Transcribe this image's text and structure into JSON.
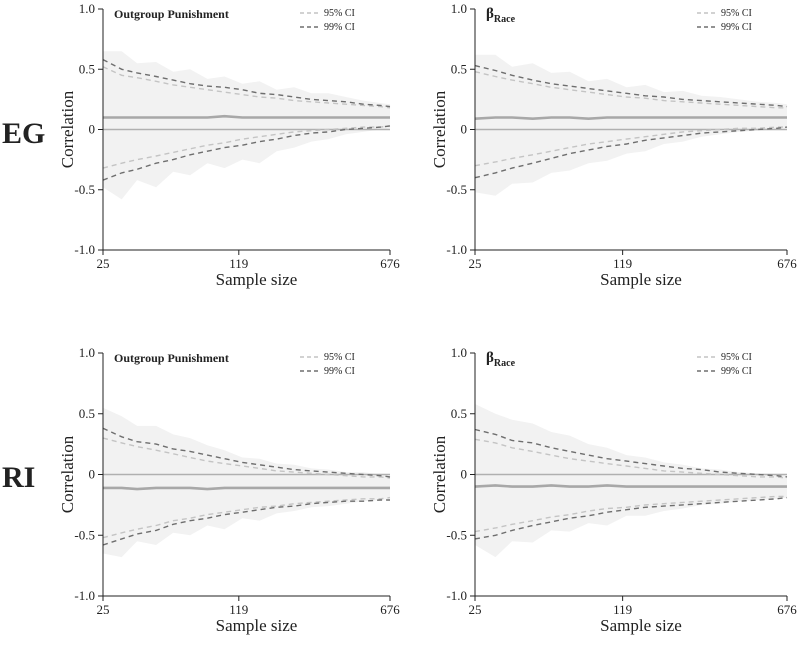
{
  "row_labels": [
    "EG",
    "RI"
  ],
  "legend": {
    "ci95": "95% CI",
    "ci99": "99% CI"
  },
  "chart_data": [
    {
      "type": "line",
      "row": "EG",
      "title": "Outgroup Punishment",
      "xlabel": "Sample size",
      "ylabel": "Correlation",
      "xscale": "log",
      "xlim": [
        25,
        676
      ],
      "ylim": [
        -1.0,
        1.0
      ],
      "xticks": [
        25,
        119,
        676
      ],
      "xtick_labels": [
        "25",
        "119",
        "676"
      ],
      "yticks": [
        1.0,
        0.5,
        0,
        -0.5,
        -1.0
      ],
      "ytick_labels": [
        "1.0",
        "0.5",
        "0",
        "-0.5",
        "-1.0"
      ],
      "reference_line": 0,
      "legend_position": "top-right",
      "x": [
        25,
        31,
        37,
        46,
        56,
        68,
        83,
        101,
        124,
        151,
        184,
        225,
        274,
        334,
        407,
        497,
        606,
        676
      ],
      "series": [
        {
          "role": "estimate",
          "values": [
            0.1,
            0.1,
            0.1,
            0.1,
            0.1,
            0.1,
            0.1,
            0.11,
            0.1,
            0.1,
            0.1,
            0.1,
            0.1,
            0.1,
            0.1,
            0.1,
            0.1,
            0.1
          ]
        },
        {
          "role": "band_upper",
          "values": [
            0.65,
            0.65,
            0.55,
            0.56,
            0.48,
            0.5,
            0.42,
            0.44,
            0.38,
            0.4,
            0.33,
            0.35,
            0.3,
            0.3,
            0.27,
            0.24,
            0.22,
            0.21
          ]
        },
        {
          "role": "band_lower",
          "values": [
            -0.48,
            -0.58,
            -0.42,
            -0.48,
            -0.35,
            -0.38,
            -0.28,
            -0.32,
            -0.25,
            -0.28,
            -0.18,
            -0.15,
            -0.1,
            -0.08,
            -0.04,
            -0.02,
            0.0,
            0.01
          ]
        },
        {
          "name": "95% CI",
          "role": "ci95_upper",
          "values": [
            0.52,
            0.45,
            0.43,
            0.4,
            0.37,
            0.35,
            0.33,
            0.31,
            0.29,
            0.27,
            0.26,
            0.24,
            0.23,
            0.22,
            0.21,
            0.2,
            0.19,
            0.18
          ]
        },
        {
          "name": "95% CI",
          "role": "ci95_lower",
          "values": [
            -0.32,
            -0.28,
            -0.25,
            -0.22,
            -0.19,
            -0.16,
            -0.13,
            -0.11,
            -0.08,
            -0.06,
            -0.04,
            -0.02,
            -0.01,
            0.0,
            0.01,
            0.02,
            0.02,
            0.03
          ]
        },
        {
          "name": "99% CI",
          "role": "ci99_upper",
          "values": [
            0.58,
            0.5,
            0.47,
            0.44,
            0.41,
            0.38,
            0.36,
            0.35,
            0.33,
            0.3,
            0.29,
            0.27,
            0.25,
            0.24,
            0.23,
            0.21,
            0.2,
            0.19
          ]
        },
        {
          "name": "99% CI",
          "role": "ci99_lower",
          "values": [
            -0.42,
            -0.36,
            -0.33,
            -0.28,
            -0.25,
            -0.21,
            -0.18,
            -0.15,
            -0.13,
            -0.1,
            -0.08,
            -0.05,
            -0.03,
            -0.02,
            0.0,
            0.01,
            0.02,
            0.03
          ]
        }
      ]
    },
    {
      "type": "line",
      "row": "EG",
      "title": "β",
      "title_subscript": "Race",
      "xlabel": "Sample size",
      "ylabel": "Correlation",
      "xscale": "log",
      "xlim": [
        25,
        676
      ],
      "ylim": [
        -1.0,
        1.0
      ],
      "xticks": [
        25,
        119,
        676
      ],
      "xtick_labels": [
        "25",
        "119",
        "676"
      ],
      "yticks": [
        1.0,
        0.5,
        0,
        -0.5,
        -1.0
      ],
      "ytick_labels": [
        "1.0",
        "0.5",
        "0",
        "-0.5",
        "-1.0"
      ],
      "reference_line": 0,
      "legend_position": "top-right",
      "x": [
        25,
        31,
        37,
        46,
        56,
        68,
        83,
        101,
        124,
        151,
        184,
        225,
        274,
        334,
        407,
        497,
        606,
        676
      ],
      "series": [
        {
          "role": "estimate",
          "values": [
            0.09,
            0.1,
            0.1,
            0.09,
            0.1,
            0.1,
            0.09,
            0.1,
            0.1,
            0.1,
            0.1,
            0.1,
            0.1,
            0.1,
            0.1,
            0.1,
            0.1,
            0.1
          ]
        },
        {
          "role": "band_upper",
          "values": [
            0.62,
            0.62,
            0.52,
            0.55,
            0.47,
            0.48,
            0.4,
            0.42,
            0.35,
            0.37,
            0.31,
            0.32,
            0.28,
            0.27,
            0.25,
            0.23,
            0.22,
            0.21
          ]
        },
        {
          "role": "band_lower",
          "values": [
            -0.52,
            -0.55,
            -0.45,
            -0.44,
            -0.36,
            -0.34,
            -0.28,
            -0.26,
            -0.2,
            -0.18,
            -0.12,
            -0.1,
            -0.06,
            -0.04,
            -0.02,
            -0.01,
            0.0,
            0.01
          ]
        },
        {
          "name": "95% CI",
          "role": "ci95_upper",
          "values": [
            0.48,
            0.44,
            0.41,
            0.38,
            0.35,
            0.33,
            0.31,
            0.29,
            0.27,
            0.26,
            0.24,
            0.23,
            0.22,
            0.21,
            0.2,
            0.19,
            0.18,
            0.18
          ]
        },
        {
          "name": "95% CI",
          "role": "ci95_lower",
          "values": [
            -0.3,
            -0.27,
            -0.24,
            -0.21,
            -0.18,
            -0.15,
            -0.12,
            -0.1,
            -0.08,
            -0.06,
            -0.04,
            -0.02,
            -0.01,
            0.0,
            0.01,
            0.01,
            0.02,
            0.02
          ]
        },
        {
          "name": "99% CI",
          "role": "ci99_upper",
          "values": [
            0.53,
            0.49,
            0.45,
            0.41,
            0.38,
            0.36,
            0.34,
            0.32,
            0.3,
            0.28,
            0.27,
            0.25,
            0.24,
            0.23,
            0.22,
            0.21,
            0.2,
            0.19
          ]
        },
        {
          "name": "99% CI",
          "role": "ci99_lower",
          "values": [
            -0.4,
            -0.36,
            -0.32,
            -0.28,
            -0.24,
            -0.2,
            -0.17,
            -0.14,
            -0.12,
            -0.09,
            -0.07,
            -0.05,
            -0.03,
            -0.02,
            -0.01,
            0.0,
            0.01,
            0.02
          ]
        }
      ]
    },
    {
      "type": "line",
      "row": "RI",
      "title": "Outgroup Punishment",
      "xlabel": "Sample size",
      "ylabel": "Correlation",
      "xscale": "log",
      "xlim": [
        25,
        676
      ],
      "ylim": [
        -1.0,
        1.0
      ],
      "xticks": [
        25,
        119,
        676
      ],
      "xtick_labels": [
        "25",
        "119",
        "676"
      ],
      "yticks": [
        1.0,
        0.5,
        0,
        -0.5,
        -1.0
      ],
      "ytick_labels": [
        "1.0",
        "0.5",
        "0",
        "-0.5",
        "-1.0"
      ],
      "reference_line": 0,
      "legend_position": "top-right",
      "x": [
        25,
        31,
        37,
        46,
        56,
        68,
        83,
        101,
        124,
        151,
        184,
        225,
        274,
        334,
        407,
        497,
        606,
        676
      ],
      "series": [
        {
          "role": "estimate",
          "values": [
            -0.11,
            -0.11,
            -0.12,
            -0.11,
            -0.11,
            -0.11,
            -0.12,
            -0.11,
            -0.11,
            -0.11,
            -0.11,
            -0.11,
            -0.11,
            -0.11,
            -0.11,
            -0.11,
            -0.11,
            -0.11
          ]
        },
        {
          "role": "band_upper",
          "values": [
            0.55,
            0.48,
            0.4,
            0.4,
            0.33,
            0.3,
            0.24,
            0.2,
            0.14,
            0.13,
            0.09,
            0.08,
            0.05,
            0.04,
            0.02,
            0.02,
            0.0,
            0.0
          ]
        },
        {
          "role": "band_lower",
          "values": [
            -0.65,
            -0.68,
            -0.55,
            -0.58,
            -0.48,
            -0.5,
            -0.42,
            -0.45,
            -0.36,
            -0.38,
            -0.32,
            -0.3,
            -0.27,
            -0.26,
            -0.24,
            -0.22,
            -0.21,
            -0.2
          ]
        },
        {
          "name": "95% CI",
          "role": "ci95_upper",
          "values": [
            0.3,
            0.26,
            0.23,
            0.2,
            0.17,
            0.14,
            0.11,
            0.09,
            0.07,
            0.05,
            0.03,
            0.02,
            0.01,
            0.0,
            -0.01,
            -0.02,
            -0.02,
            -0.03
          ]
        },
        {
          "name": "95% CI",
          "role": "ci95_lower",
          "values": [
            -0.52,
            -0.48,
            -0.45,
            -0.42,
            -0.38,
            -0.36,
            -0.33,
            -0.31,
            -0.29,
            -0.27,
            -0.26,
            -0.24,
            -0.23,
            -0.22,
            -0.21,
            -0.2,
            -0.2,
            -0.19
          ]
        },
        {
          "name": "99% CI",
          "role": "ci99_upper",
          "values": [
            0.38,
            0.31,
            0.27,
            0.25,
            0.21,
            0.19,
            0.16,
            0.13,
            0.1,
            0.08,
            0.06,
            0.04,
            0.03,
            0.02,
            0.01,
            0.0,
            -0.01,
            -0.02
          ]
        },
        {
          "name": "99% CI",
          "role": "ci99_lower",
          "values": [
            -0.58,
            -0.53,
            -0.49,
            -0.46,
            -0.41,
            -0.38,
            -0.36,
            -0.33,
            -0.31,
            -0.29,
            -0.27,
            -0.26,
            -0.24,
            -0.23,
            -0.22,
            -0.22,
            -0.21,
            -0.21
          ]
        }
      ]
    },
    {
      "type": "line",
      "row": "RI",
      "title": "β",
      "title_subscript": "Race",
      "xlabel": "Sample size",
      "ylabel": "Correlation",
      "xscale": "log",
      "xlim": [
        25,
        676
      ],
      "ylim": [
        -1.0,
        1.0
      ],
      "xticks": [
        25,
        119,
        676
      ],
      "xtick_labels": [
        "25",
        "119",
        "676"
      ],
      "yticks": [
        1.0,
        0.5,
        0,
        -0.5,
        -1.0
      ],
      "ytick_labels": [
        "1.0",
        "0.5",
        "0",
        "-0.5",
        "-1.0"
      ],
      "reference_line": 0,
      "legend_position": "top-right",
      "x": [
        25,
        31,
        37,
        46,
        56,
        68,
        83,
        101,
        124,
        151,
        184,
        225,
        274,
        334,
        407,
        497,
        606,
        676
      ],
      "series": [
        {
          "role": "estimate",
          "values": [
            -0.1,
            -0.09,
            -0.1,
            -0.1,
            -0.09,
            -0.1,
            -0.1,
            -0.09,
            -0.1,
            -0.1,
            -0.1,
            -0.1,
            -0.1,
            -0.1,
            -0.1,
            -0.1,
            -0.1,
            -0.1
          ]
        },
        {
          "role": "band_upper",
          "values": [
            0.58,
            0.5,
            0.45,
            0.42,
            0.35,
            0.32,
            0.25,
            0.22,
            0.16,
            0.14,
            0.1,
            0.08,
            0.05,
            0.04,
            0.02,
            0.01,
            0.0,
            0.0
          ]
        },
        {
          "role": "band_lower",
          "values": [
            -0.58,
            -0.68,
            -0.55,
            -0.56,
            -0.46,
            -0.47,
            -0.4,
            -0.42,
            -0.34,
            -0.34,
            -0.3,
            -0.28,
            -0.25,
            -0.24,
            -0.22,
            -0.21,
            -0.2,
            -0.19
          ]
        },
        {
          "name": "95% CI",
          "role": "ci95_upper",
          "values": [
            0.29,
            0.26,
            0.22,
            0.19,
            0.16,
            0.13,
            0.11,
            0.09,
            0.07,
            0.05,
            0.03,
            0.02,
            0.01,
            0.0,
            -0.01,
            -0.02,
            -0.02,
            -0.03
          ]
        },
        {
          "name": "95% CI",
          "role": "ci95_lower",
          "values": [
            -0.47,
            -0.44,
            -0.41,
            -0.38,
            -0.35,
            -0.33,
            -0.3,
            -0.28,
            -0.27,
            -0.25,
            -0.24,
            -0.23,
            -0.22,
            -0.21,
            -0.2,
            -0.19,
            -0.18,
            -0.18
          ]
        },
        {
          "name": "99% CI",
          "role": "ci99_upper",
          "values": [
            0.37,
            0.33,
            0.28,
            0.26,
            0.22,
            0.19,
            0.16,
            0.13,
            0.11,
            0.09,
            0.07,
            0.05,
            0.04,
            0.02,
            0.01,
            0.0,
            -0.01,
            -0.02
          ]
        },
        {
          "name": "99% CI",
          "role": "ci99_lower",
          "values": [
            -0.53,
            -0.5,
            -0.46,
            -0.42,
            -0.39,
            -0.36,
            -0.34,
            -0.31,
            -0.29,
            -0.27,
            -0.26,
            -0.25,
            -0.24,
            -0.23,
            -0.22,
            -0.21,
            -0.2,
            -0.19
          ]
        }
      ]
    }
  ]
}
